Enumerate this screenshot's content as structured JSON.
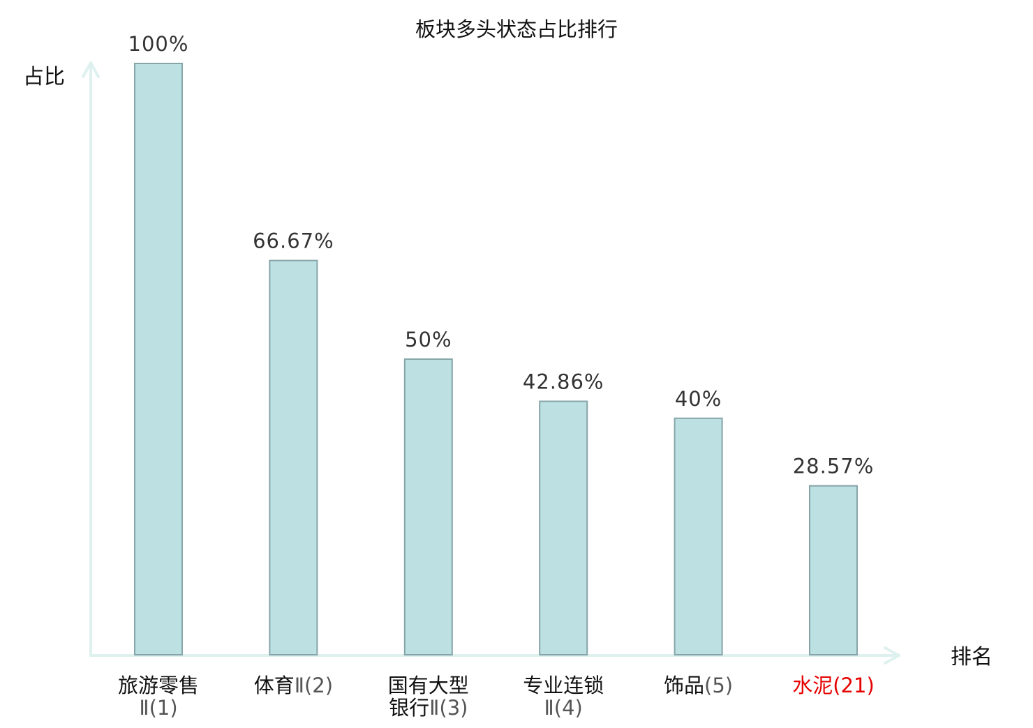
{
  "chart_data": {
    "type": "bar",
    "title": "板块多头状态占比排行",
    "ylabel": "占比",
    "xlabel": "排名",
    "ylim": [
      0,
      100
    ],
    "grid": false,
    "legend": "none",
    "categories": [
      {
        "name_lines": [
          "旅游零售"
        ],
        "rank": "Ⅱ(1)",
        "highlight": false
      },
      {
        "name_lines": [
          "体育"
        ],
        "rank": "Ⅱ(2)",
        "highlight": false
      },
      {
        "name_lines": [
          "国有大型",
          "银行"
        ],
        "rank": "Ⅱ(3)",
        "highlight": false
      },
      {
        "name_lines": [
          "专业连锁"
        ],
        "rank": "Ⅱ(4)",
        "highlight": false
      },
      {
        "name_lines": [
          "饰品"
        ],
        "rank": "(5)",
        "highlight": false
      },
      {
        "name_lines": [
          "水泥"
        ],
        "rank": "(21)",
        "highlight": true
      }
    ],
    "values": [
      100,
      66.67,
      50,
      42.86,
      40,
      28.57
    ],
    "value_labels": [
      "100%",
      "66.67%",
      "50%",
      "42.86%",
      "40%",
      "28.57%"
    ]
  },
  "colors": {
    "bar_fill": "#bde0e3",
    "bar_stroke": "#86a5a9",
    "axis": "#dff1ef",
    "text": "#333333",
    "label_black": "#111111",
    "rank_gray": "#555555",
    "highlight": "#e60000"
  }
}
